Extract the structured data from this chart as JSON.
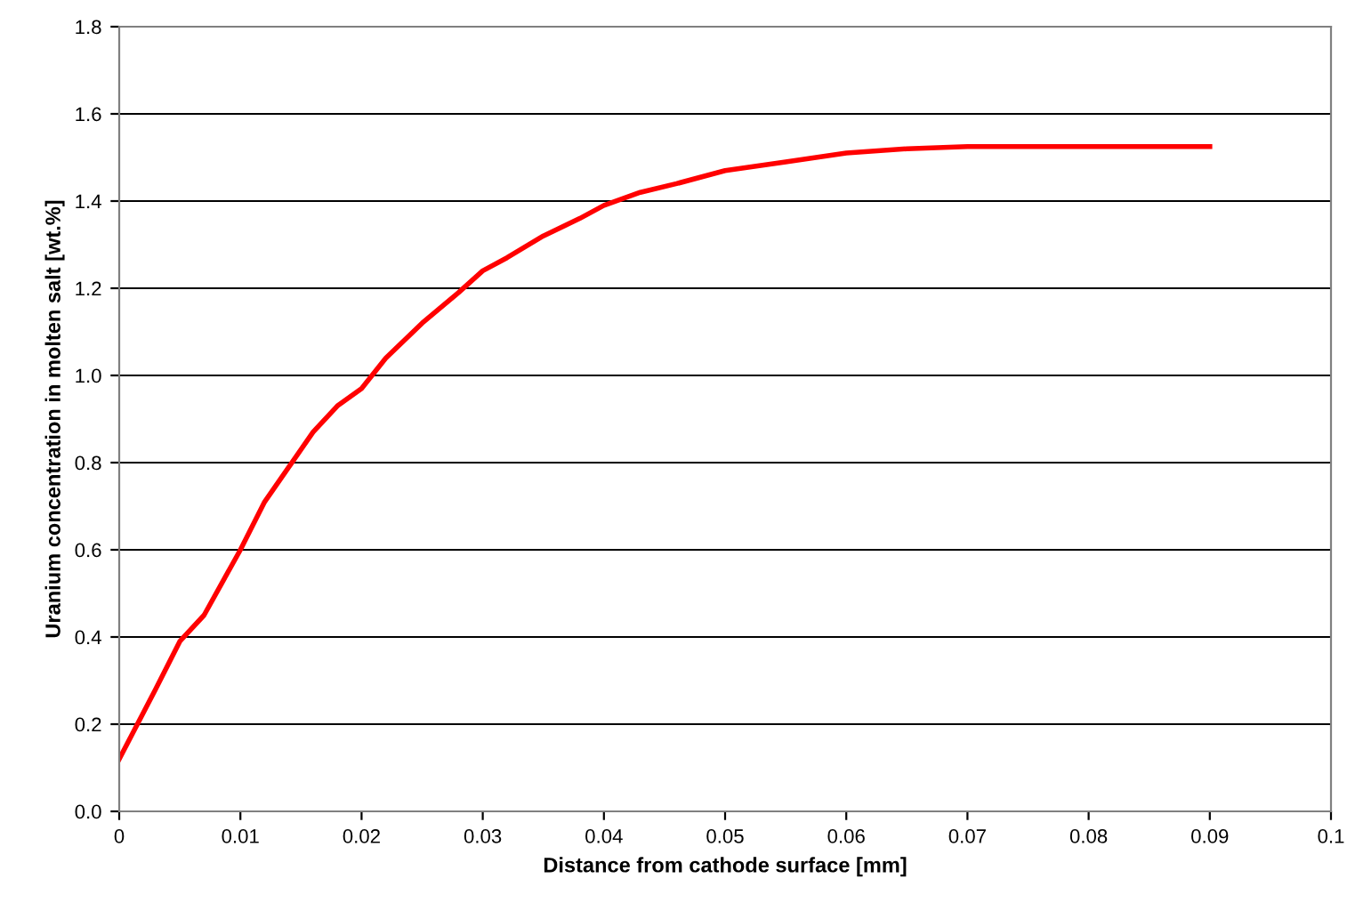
{
  "chart_data": {
    "type": "line",
    "xlabel": "Distance from cathode surface [mm]",
    "ylabel": "Uranium concentration in molten salt [wt.%]",
    "x": [
      0,
      0.003,
      0.005,
      0.007,
      0.01,
      0.012,
      0.014,
      0.016,
      0.018,
      0.02,
      0.022,
      0.025,
      0.028,
      0.03,
      0.032,
      0.035,
      0.038,
      0.04,
      0.043,
      0.046,
      0.05,
      0.055,
      0.06,
      0.065,
      0.07,
      0.08,
      0.09
    ],
    "series": [
      {
        "color": "#ff0000",
        "values": [
          0.12,
          0.28,
          0.39,
          0.45,
          0.6,
          0.71,
          0.79,
          0.87,
          0.93,
          0.97,
          1.04,
          1.12,
          1.19,
          1.24,
          1.27,
          1.32,
          1.36,
          1.39,
          1.42,
          1.44,
          1.47,
          1.49,
          1.51,
          1.52,
          1.525,
          1.525,
          1.525
        ]
      }
    ],
    "xlim": [
      0,
      0.1
    ],
    "xticks": [
      0,
      0.01,
      0.02,
      0.03,
      0.04,
      0.05,
      0.06,
      0.07,
      0.08,
      0.09,
      0.1
    ],
    "ylim": [
      0,
      1.8
    ],
    "yticks": [
      {
        "value": 0,
        "label": "0.0"
      },
      {
        "value": 0.2,
        "label": "0.2"
      },
      {
        "value": 0.4,
        "label": "0.4"
      },
      {
        "value": 0.6,
        "label": "0.6"
      },
      {
        "value": 0.8,
        "label": "0.8"
      },
      {
        "value": 1.0,
        "label": "1.0"
      },
      {
        "value": 1.2,
        "label": "1.2"
      },
      {
        "value": 1.4,
        "label": "1.4"
      },
      {
        "value": 1.6,
        "label": "1.6"
      },
      {
        "value": 1.8,
        "label": "1.8"
      }
    ],
    "grid": "y"
  }
}
